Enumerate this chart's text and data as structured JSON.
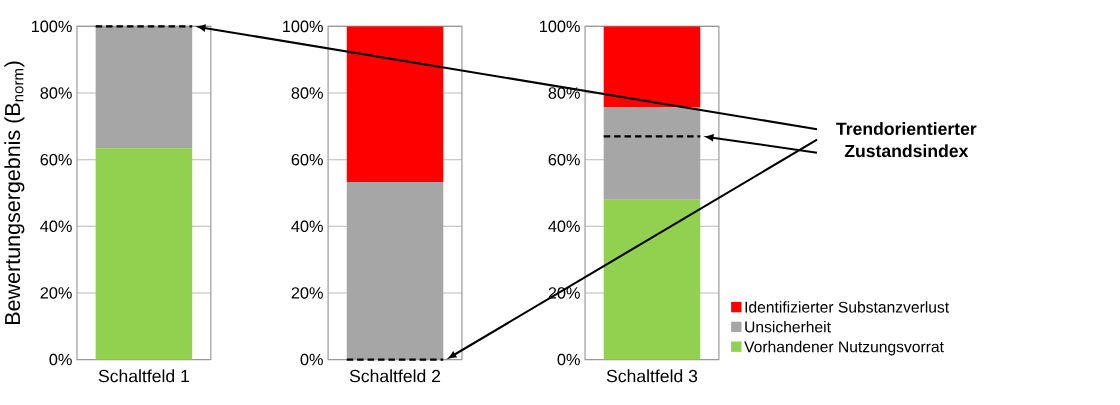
{
  "chart_data": [
    {
      "type": "bar",
      "stacked": true,
      "categories": [
        "Schaltfeld 1"
      ],
      "ylabel": "Bewertungsergebnis (B$_{norm}$)",
      "ylim": [
        0,
        100
      ],
      "yticks": [
        {
          "value": 0,
          "label": "0%"
        },
        {
          "value": 20,
          "label": "20%"
        },
        {
          "value": 40,
          "label": "40%"
        },
        {
          "value": 60,
          "label": "60%"
        },
        {
          "value": 80,
          "label": "80%"
        },
        {
          "value": 100,
          "label": "100%"
        }
      ],
      "grid": "y",
      "series": [
        {
          "color": "#92d050",
          "values": [
            63.4
          ]
        },
        {
          "color": "#a6a6a6",
          "values": [
            36.6
          ]
        }
      ],
      "ref_lines": [
        {
          "axis": "y",
          "value": 100,
          "color": "#000000",
          "line_style": "dashed"
        }
      ]
    },
    {
      "type": "bar",
      "stacked": true,
      "categories": [
        "Schaltfeld 2"
      ],
      "ylim": [
        0,
        100
      ],
      "yticks": [
        {
          "value": 0,
          "label": "0%"
        },
        {
          "value": 20,
          "label": "20%"
        },
        {
          "value": 40,
          "label": "40%"
        },
        {
          "value": 60,
          "label": "60%"
        },
        {
          "value": 80,
          "label": "80%"
        },
        {
          "value": 100,
          "label": "100%"
        }
      ],
      "grid": "y",
      "series": [
        {
          "color": "#a6a6a6",
          "values": [
            53.3
          ]
        },
        {
          "color": "#ff0000",
          "values": [
            46.7
          ]
        }
      ],
      "ref_lines": [
        {
          "axis": "y",
          "value": 0,
          "color": "#000000",
          "line_style": "dashed"
        }
      ]
    },
    {
      "type": "bar",
      "stacked": true,
      "categories": [
        "Schaltfeld 3"
      ],
      "ylim": [
        0,
        100
      ],
      "yticks": [
        {
          "value": 0,
          "label": "0%"
        },
        {
          "value": 20,
          "label": "20%"
        },
        {
          "value": 40,
          "label": "40%"
        },
        {
          "value": 60,
          "label": "60%"
        },
        {
          "value": 80,
          "label": "80%"
        },
        {
          "value": 100,
          "label": "100%"
        }
      ],
      "grid": "y",
      "legend": "bottom right",
      "series": [
        {
          "name": "Vorhandener Nutzungsvorrat",
          "color": "#92d050",
          "values": [
            48.0
          ]
        },
        {
          "name": "Unsicherheit",
          "color": "#a6a6a6",
          "values": [
            27.7
          ]
        },
        {
          "name": "Identifizierter Substanzverlust",
          "color": "#ff0000",
          "values": [
            24.3
          ]
        }
      ],
      "ref_lines": [
        {
          "axis": "y",
          "value": 67,
          "color": "#000000",
          "line_style": "dashed"
        }
      ],
      "annotations": [
        "Trendorientierter Zustandsindex"
      ]
    }
  ]
}
